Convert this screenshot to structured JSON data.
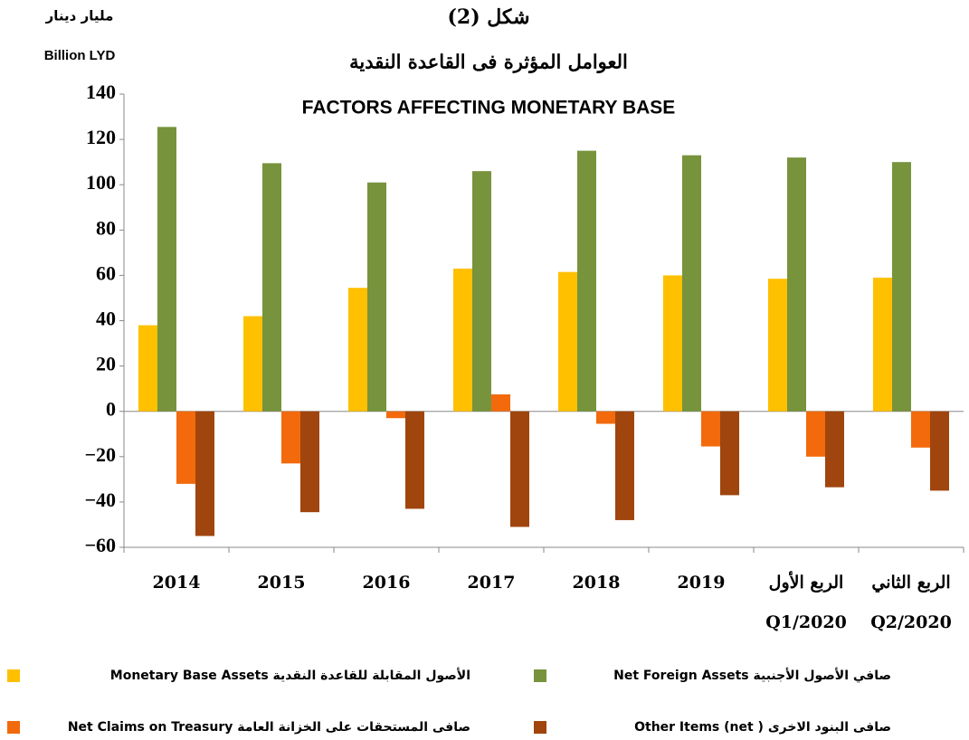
{
  "chart_data": {
    "type": "bar",
    "figure_label": "شكل (2)",
    "title_ar": "العوامل المؤثرة  فى القاعدة النقدية",
    "title": "FACTORS AFFECTING MONETARY BASE",
    "unit_ar": "مليار دينار",
    "unit": "Billion LYD",
    "categories": [
      "2014",
      "2015",
      "2016",
      "2017",
      "2018",
      "2019",
      [
        "الربع الأول",
        "Q1/2020"
      ],
      [
        "الربع الثاني",
        "Q2/2020"
      ]
    ],
    "series": [
      {
        "name": "الأصول المقابلة للقاعدة النقدية   Monetary Base Assets",
        "color": "#FFC000",
        "values": [
          38,
          42,
          54.5,
          63,
          61.5,
          60,
          58.5,
          59
        ]
      },
      {
        "name": "صافي الأصول الأجنبية Net Foreign Assets",
        "color": "#77933C",
        "values": [
          125.5,
          109.5,
          101,
          106,
          115,
          113,
          112,
          110
        ]
      },
      {
        "name": "صافى المستحقات على الخزانة العامة Net Claims on Treasury",
        "color": "#F26A0C",
        "values": [
          -32,
          -23,
          -3,
          7.5,
          -5.5,
          -15.5,
          -20,
          -16
        ]
      },
      {
        "name": "صافى البنود الاخرى Other Items (net )",
        "color": "#A0450E",
        "values": [
          -55,
          -44.5,
          -43,
          -51,
          -48,
          -37,
          -33.5,
          -35
        ]
      }
    ],
    "ylim": [
      -60,
      140
    ],
    "yticks": [
      {
        "value": -60,
        "label": "−60"
      },
      {
        "value": -40,
        "label": "−40"
      },
      {
        "value": -20,
        "label": "−20"
      },
      0,
      20,
      40,
      60,
      80,
      100,
      120,
      140
    ],
    "grid": false
  }
}
